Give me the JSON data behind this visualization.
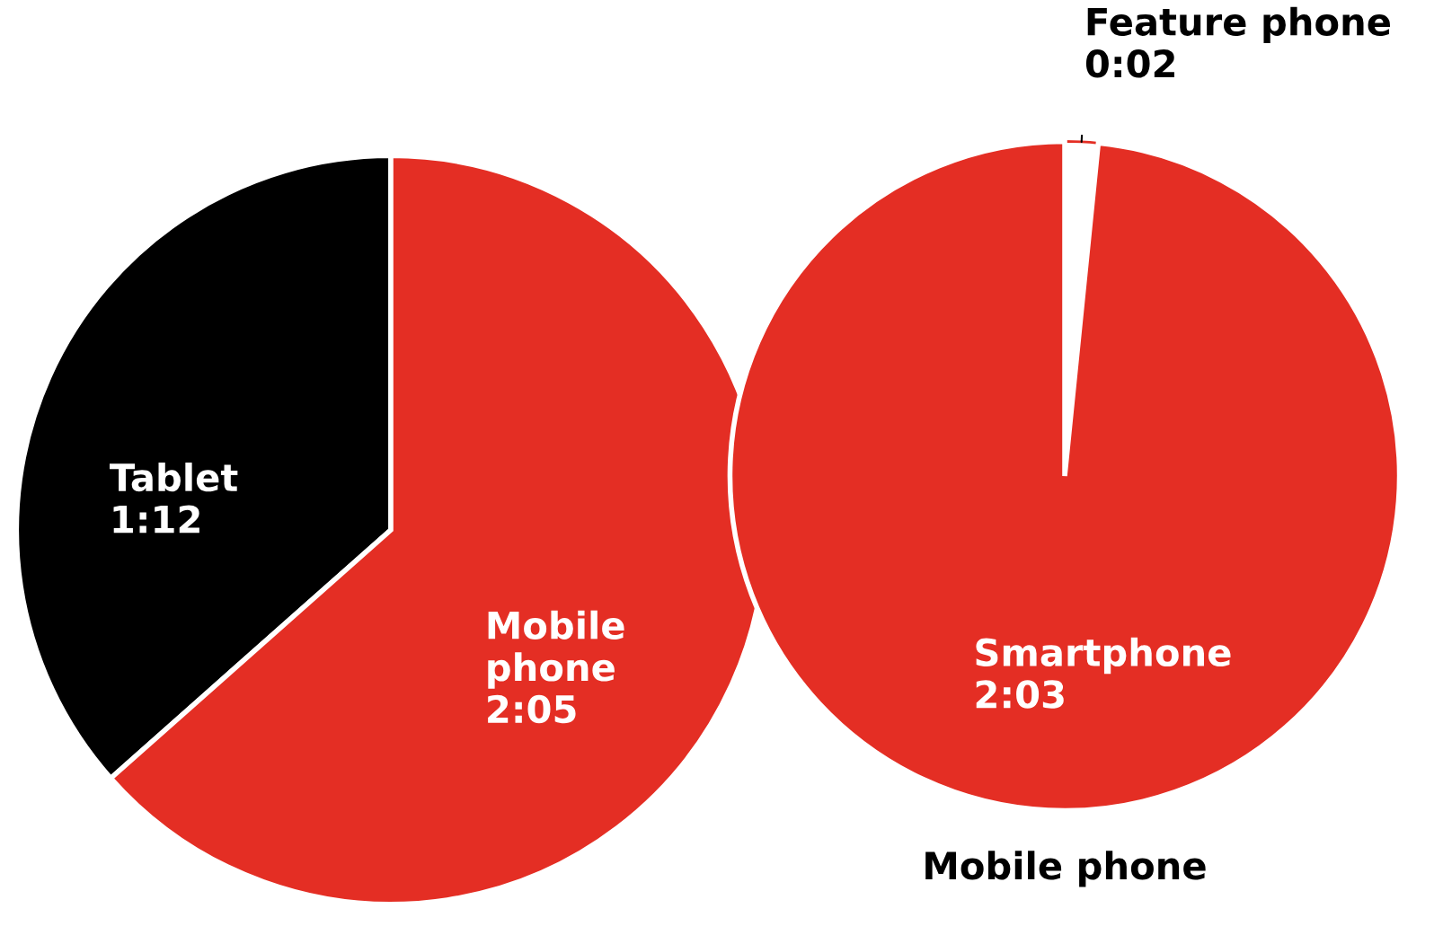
{
  "chart_data": [
    {
      "type": "pie",
      "categories": [
        "Tablet",
        "Mobile\nphone"
      ],
      "values": [
        72,
        125
      ],
      "value_labels": [
        "1:12",
        "2:05"
      ],
      "colors": [
        "#000000",
        "#e42e24"
      ]
    },
    {
      "type": "pie",
      "title": "Mobile phone",
      "categories": [
        "Feature phone",
        "Smartphone"
      ],
      "values": [
        2,
        123
      ],
      "value_labels": [
        "0:02",
        "2:03"
      ],
      "colors": [
        "#ffffff",
        "#e42e24"
      ]
    }
  ]
}
